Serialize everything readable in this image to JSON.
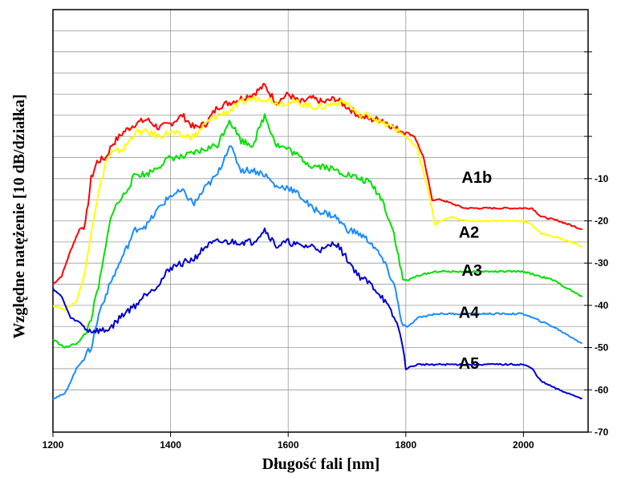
{
  "chart_data": {
    "type": "line",
    "xlabel": "Długość fali [nm]",
    "ylabel": "Względne natężenie [10 dB/działka]",
    "xlim": [
      1200,
      2110
    ],
    "ylim": [
      -70,
      30
    ],
    "x_ticks": [
      1200,
      1400,
      1600,
      1800,
      2000
    ],
    "x_tick_labels": [
      "1200",
      "1400",
      "1600",
      "1800",
      "2000"
    ],
    "y_ticks_labeled": [
      -10,
      -20,
      -30,
      -40,
      -50,
      -60,
      -70
    ],
    "y_tick_labels": [
      "-10",
      "-20",
      "-30",
      "-40",
      "-50",
      "-60",
      "-70"
    ],
    "y_ticks_unlabeled": [
      20,
      10,
      0
    ],
    "grid": true,
    "series": [
      {
        "name": "A1b",
        "color": "#ff0000",
        "x": [
          1200,
          1215,
          1230,
          1245,
          1255,
          1265,
          1275,
          1290,
          1300,
          1320,
          1340,
          1360,
          1380,
          1400,
          1420,
          1440,
          1460,
          1480,
          1500,
          1520,
          1540,
          1560,
          1580,
          1600,
          1620,
          1640,
          1660,
          1680,
          1700,
          1720,
          1740,
          1760,
          1780,
          1800,
          1815,
          1830,
          1845,
          1860,
          1880,
          1900,
          1950,
          2000,
          2015,
          2030,
          2060,
          2100
        ],
        "y": [
          -35,
          -33,
          -27,
          -22,
          -21,
          -10,
          -6,
          -5,
          -2,
          1,
          3,
          4,
          2,
          3,
          5,
          2,
          3,
          7,
          8,
          9,
          10,
          12,
          8,
          10,
          8,
          9,
          8,
          9,
          7,
          5,
          4,
          4,
          2,
          1,
          0,
          -5,
          -15,
          -15,
          -16,
          -17,
          -17,
          -17,
          -17,
          -19,
          -20,
          -22
        ]
      },
      {
        "name": "A2",
        "color": "#ffff00",
        "x": [
          1200,
          1220,
          1240,
          1255,
          1265,
          1275,
          1290,
          1300,
          1320,
          1340,
          1360,
          1380,
          1400,
          1420,
          1440,
          1460,
          1480,
          1500,
          1520,
          1540,
          1560,
          1580,
          1600,
          1620,
          1640,
          1660,
          1680,
          1700,
          1720,
          1740,
          1760,
          1780,
          1800,
          1820,
          1840,
          1850,
          1860,
          1880,
          1900,
          1950,
          2000,
          2015,
          2030,
          2060,
          2100
        ],
        "y": [
          -40,
          -41,
          -39,
          -32,
          -22,
          -15,
          -6,
          -4,
          -3,
          1,
          1,
          0,
          1,
          0,
          0,
          3,
          5,
          6,
          8,
          9,
          9,
          8,
          8,
          8,
          7,
          7,
          8,
          8,
          5,
          5,
          3,
          2,
          0,
          -3,
          -14,
          -21,
          -20,
          -19,
          -20,
          -20,
          -20,
          -21,
          -23,
          -24,
          -26
        ]
      },
      {
        "name": "A3",
        "color": "#00e000",
        "x": [
          1200,
          1220,
          1240,
          1255,
          1265,
          1280,
          1300,
          1320,
          1340,
          1360,
          1380,
          1400,
          1420,
          1440,
          1460,
          1480,
          1500,
          1520,
          1540,
          1560,
          1580,
          1600,
          1620,
          1640,
          1660,
          1680,
          1700,
          1720,
          1740,
          1760,
          1780,
          1795,
          1805,
          1820,
          1850,
          1900,
          1950,
          2000,
          2050,
          2100
        ],
        "y": [
          -48,
          -50,
          -49,
          -47,
          -43,
          -34,
          -18,
          -14,
          -9,
          -9,
          -7,
          -5,
          -5,
          -4,
          -3,
          -2,
          4,
          -1,
          -2,
          5,
          -2,
          -3,
          -5,
          -7,
          -7,
          -8,
          -9,
          -10,
          -11,
          -15,
          -23,
          -34,
          -34,
          -33,
          -32,
          -32,
          -32,
          -32,
          -34,
          -38
        ]
      },
      {
        "name": "A4",
        "color": "#1a8cff",
        "x": [
          1200,
          1220,
          1240,
          1255,
          1265,
          1280,
          1300,
          1320,
          1340,
          1360,
          1380,
          1400,
          1420,
          1440,
          1460,
          1480,
          1500,
          1520,
          1540,
          1560,
          1580,
          1600,
          1620,
          1640,
          1660,
          1680,
          1700,
          1720,
          1740,
          1760,
          1780,
          1795,
          1805,
          1820,
          1850,
          1900,
          1950,
          2000,
          2050,
          2100
        ],
        "y": [
          -62,
          -61,
          -55,
          -52,
          -50,
          -41,
          -34,
          -28,
          -22,
          -21,
          -17,
          -14,
          -13,
          -16,
          -12,
          -9,
          -2,
          -8,
          -8,
          -9,
          -12,
          -12,
          -14,
          -17,
          -18,
          -19,
          -22,
          -23,
          -25,
          -29,
          -35,
          -45,
          -45,
          -43,
          -42,
          -42,
          -42,
          -42,
          -45,
          -49
        ]
      },
      {
        "name": "A5",
        "color": "#0000cc",
        "x": [
          1200,
          1215,
          1230,
          1245,
          1260,
          1275,
          1290,
          1300,
          1320,
          1340,
          1360,
          1380,
          1400,
          1420,
          1440,
          1460,
          1480,
          1500,
          1520,
          1540,
          1560,
          1580,
          1600,
          1620,
          1640,
          1660,
          1680,
          1700,
          1720,
          1740,
          1760,
          1780,
          1790,
          1800,
          1820,
          1850,
          1900,
          1950,
          2000,
          2015,
          2030,
          2060,
          2100
        ],
        "y": [
          -36,
          -38,
          -43,
          -44,
          -46,
          -46,
          -46,
          -45,
          -42,
          -40,
          -37,
          -35,
          -31,
          -30,
          -29,
          -26,
          -25,
          -25,
          -25,
          -25,
          -22,
          -26,
          -25,
          -26,
          -26,
          -27,
          -25,
          -29,
          -33,
          -35,
          -38,
          -43,
          -46,
          -55,
          -54,
          -54,
          -54,
          -54,
          -54,
          -55,
          -58,
          -60,
          -62
        ]
      }
    ],
    "annotations": [
      {
        "text": "A1b",
        "x": 1895,
        "y": -11
      },
      {
        "text": "A2",
        "x": 1890,
        "y": -24
      },
      {
        "text": "A3",
        "x": 1895,
        "y": -33
      },
      {
        "text": "A4",
        "x": 1890,
        "y": -43
      },
      {
        "text": "A5",
        "x": 1890,
        "y": -55
      }
    ]
  }
}
